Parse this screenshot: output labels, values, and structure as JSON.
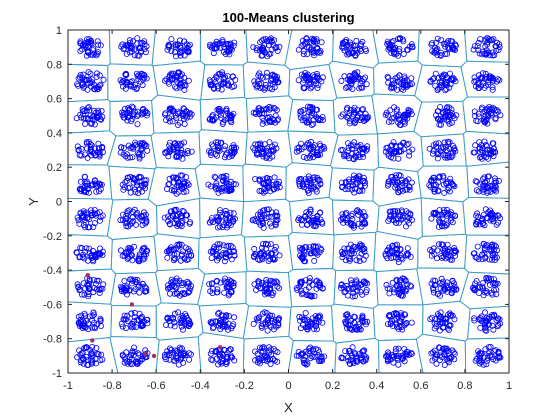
{
  "chart_data": {
    "type": "scatter",
    "title": "100-Means clustering",
    "xlabel": "X",
    "ylabel": "Y",
    "xlim": [
      -1,
      1
    ],
    "ylim": [
      -1,
      1
    ],
    "xticks": [
      -1,
      -0.8,
      -0.6,
      -0.4,
      -0.2,
      0,
      0.2,
      0.4,
      0.6,
      0.8,
      1
    ],
    "yticks": [
      -1,
      -0.8,
      -0.6,
      -0.4,
      -0.2,
      0,
      0.2,
      0.4,
      0.6,
      0.8,
      1
    ],
    "xtick_labels": [
      "-1",
      "-0.8",
      "-0.6",
      "-0.4",
      "-0.2",
      "0",
      "0.2",
      "0.4",
      "0.6",
      "0.8",
      "1"
    ],
    "ytick_labels": [
      "-1",
      "-0.8",
      "-0.6",
      "-0.4",
      "-0.2",
      "0",
      "0.2",
      "0.4",
      "0.6",
      "0.8",
      "1"
    ],
    "grid": false,
    "legend": "none",
    "cluster_centers_x": [
      -0.9,
      -0.7,
      -0.5,
      -0.3,
      -0.1,
      0.1,
      0.3,
      0.5,
      0.7,
      0.9
    ],
    "cluster_centers_y": [
      -0.9,
      -0.7,
      -0.5,
      -0.3,
      -0.1,
      0.1,
      0.3,
      0.5,
      0.7,
      0.9
    ],
    "cluster_radius": 0.055,
    "points_per_cluster": 37,
    "marker": "open-circle",
    "point_color": "#0000ff",
    "voronoi_color": "#3d9cc7",
    "centroid_color": "#a0306a",
    "highlighted_points": [
      {
        "x": -0.91,
        "y": -0.43
      },
      {
        "x": -0.71,
        "y": -0.6
      },
      {
        "x": -0.89,
        "y": -0.81
      },
      {
        "x": -0.61,
        "y": -0.9
      },
      {
        "x": -0.31,
        "y": -0.85
      },
      {
        "x": -0.65,
        "y": -0.89
      }
    ]
  }
}
